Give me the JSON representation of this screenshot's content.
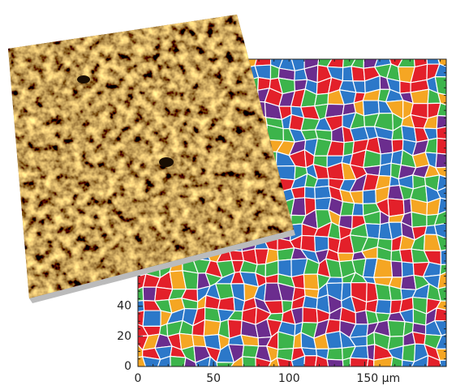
{
  "axes": {
    "xlim": [
      0,
      204
    ],
    "ylim": [
      0,
      204
    ],
    "xticks": [
      0,
      50,
      100,
      {
        "value": 150,
        "label": "150 µm"
      }
    ],
    "yticks": [
      0,
      20,
      40
    ]
  }
}
